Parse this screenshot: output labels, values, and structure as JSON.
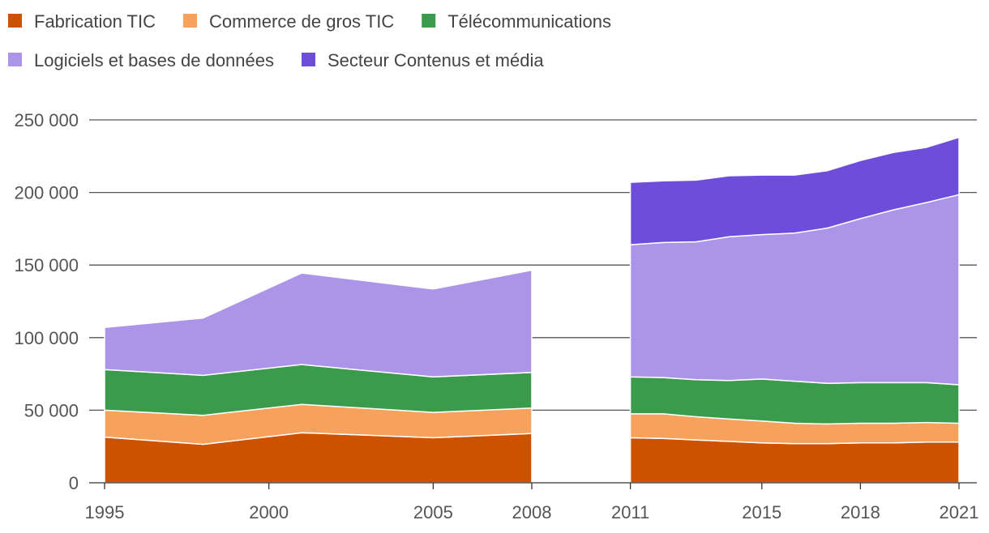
{
  "chart_data": {
    "type": "area",
    "stacked": true,
    "title": "",
    "xlabel": "",
    "ylabel": "",
    "ylim": [
      0,
      250000
    ],
    "y_ticks": [
      0,
      50000,
      100000,
      150000,
      200000,
      250000
    ],
    "y_tick_labels": [
      "0",
      "50 000",
      "100 000",
      "150 000",
      "200 000",
      "250 000"
    ],
    "x_ticks": [
      1995,
      2000,
      2005,
      2008,
      2011,
      2015,
      2018,
      2021
    ],
    "x_tick_labels": [
      "1995",
      "2000",
      "2005",
      "2008",
      "2011",
      "2015",
      "2018",
      "2021"
    ],
    "grid": true,
    "legend_position": "top-left",
    "segments": [
      {
        "x": [
          1995,
          1998,
          2001,
          2005,
          2008
        ],
        "series": [
          {
            "name": "Fabrication TIC",
            "color": "#cc5200",
            "values": [
              31500,
              26500,
              34500,
              31000,
              34000
            ]
          },
          {
            "name": "Commerce de gros TIC",
            "color": "#f6a15c",
            "values": [
              18500,
              20000,
              19500,
              17500,
              17500
            ]
          },
          {
            "name": "Télécommunications",
            "color": "#3a9b4d",
            "values": [
              28000,
              27500,
              27500,
              24500,
              24500
            ]
          },
          {
            "name": "Logiciels et bases de données",
            "color": "#ac94e9",
            "values": [
              29000,
              39500,
              63000,
              60500,
              70500
            ]
          },
          {
            "name": "Secteur Contenus et média",
            "color": "#6d4dd9",
            "values": [
              0,
              0,
              0,
              0,
              0
            ]
          }
        ]
      },
      {
        "x": [
          2011,
          2012,
          2013,
          2014,
          2015,
          2016,
          2017,
          2018,
          2019,
          2020,
          2021
        ],
        "series": [
          {
            "name": "Fabrication TIC",
            "color": "#cc5200",
            "values": [
              31000,
              30500,
              29500,
              28500,
              27500,
              27000,
              27000,
              27500,
              27500,
              28000,
              28000
            ]
          },
          {
            "name": "Commerce de gros TIC",
            "color": "#f6a15c",
            "values": [
              16500,
              17000,
              16000,
              15500,
              15000,
              14000,
              13500,
              13500,
              13500,
              13500,
              13000
            ]
          },
          {
            "name": "Télécommunications",
            "color": "#3a9b4d",
            "values": [
              25500,
              25000,
              25500,
              26500,
              29000,
              29000,
              28000,
              28000,
              28000,
              27500,
              26500
            ]
          },
          {
            "name": "Logiciels et bases de données",
            "color": "#ac94e9",
            "values": [
              91000,
              93000,
              95000,
              99000,
              99500,
              102000,
              107000,
              113000,
              119000,
              124000,
              131000
            ]
          },
          {
            "name": "Secteur Contenus et média",
            "color": "#6d4dd9",
            "values": [
              43000,
              42500,
              42500,
              42000,
              41000,
              40000,
              39500,
              40000,
              39500,
              38000,
              39500
            ]
          }
        ]
      }
    ]
  },
  "legend": {
    "items": [
      {
        "label": "Fabrication TIC",
        "color": "#cc5200"
      },
      {
        "label": "Commerce de gros TIC",
        "color": "#f6a15c"
      },
      {
        "label": "Télécommunications",
        "color": "#3a9b4d"
      },
      {
        "label": "Logiciels et bases de données",
        "color": "#ac94e9"
      },
      {
        "label": "Secteur Contenus et média",
        "color": "#6d4dd9"
      }
    ]
  }
}
